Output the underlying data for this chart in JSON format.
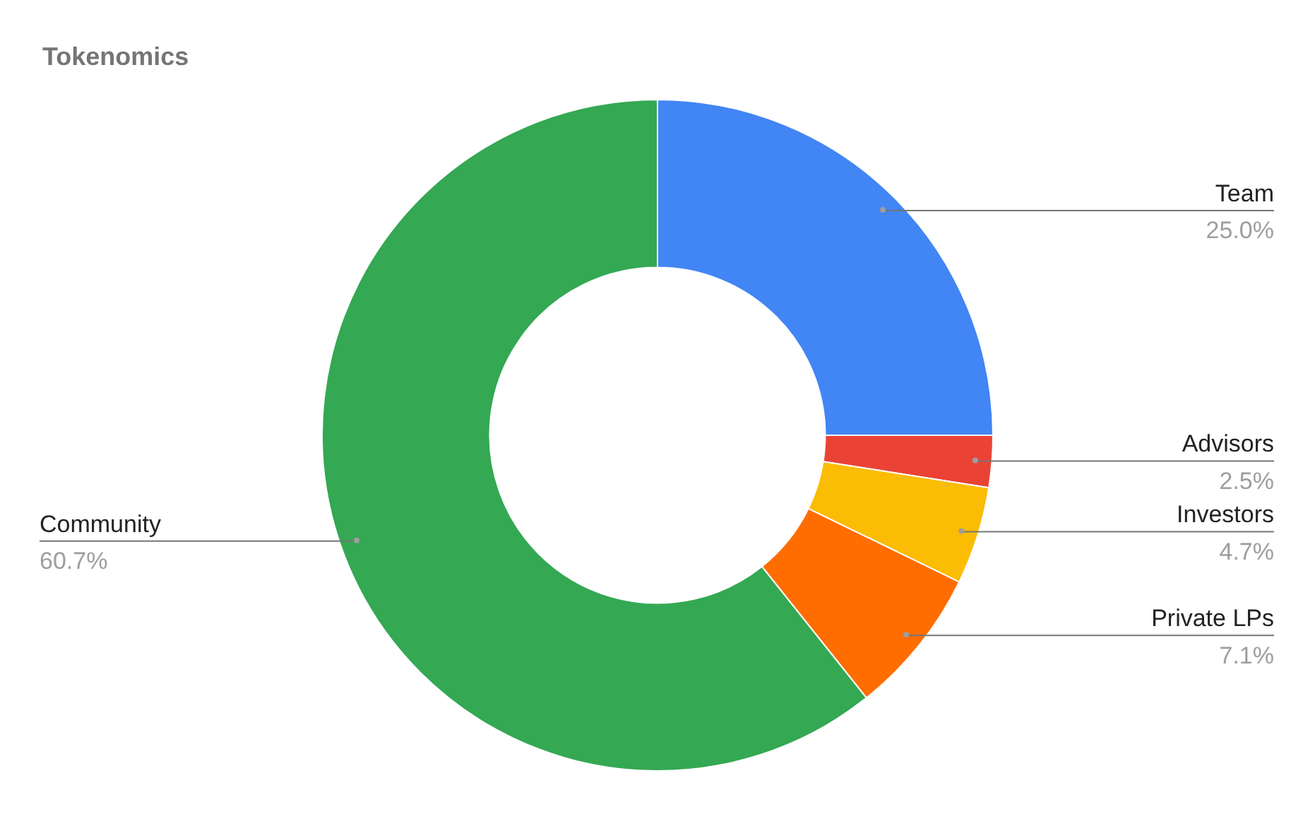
{
  "chart_data": {
    "type": "donut",
    "title": "Tokenomics",
    "categories": [
      "Team",
      "Advisors",
      "Investors",
      "Private LPs",
      "Community"
    ],
    "values": [
      25.0,
      2.5,
      4.7,
      7.1,
      60.7
    ],
    "colors": [
      "#4285f4",
      "#ea4335",
      "#fbbc04",
      "#ff6d01",
      "#34a853"
    ],
    "value_labels": [
      "25.0%",
      "2.5%",
      "4.7%",
      "7.1%",
      "60.7%"
    ],
    "legend": false
  }
}
